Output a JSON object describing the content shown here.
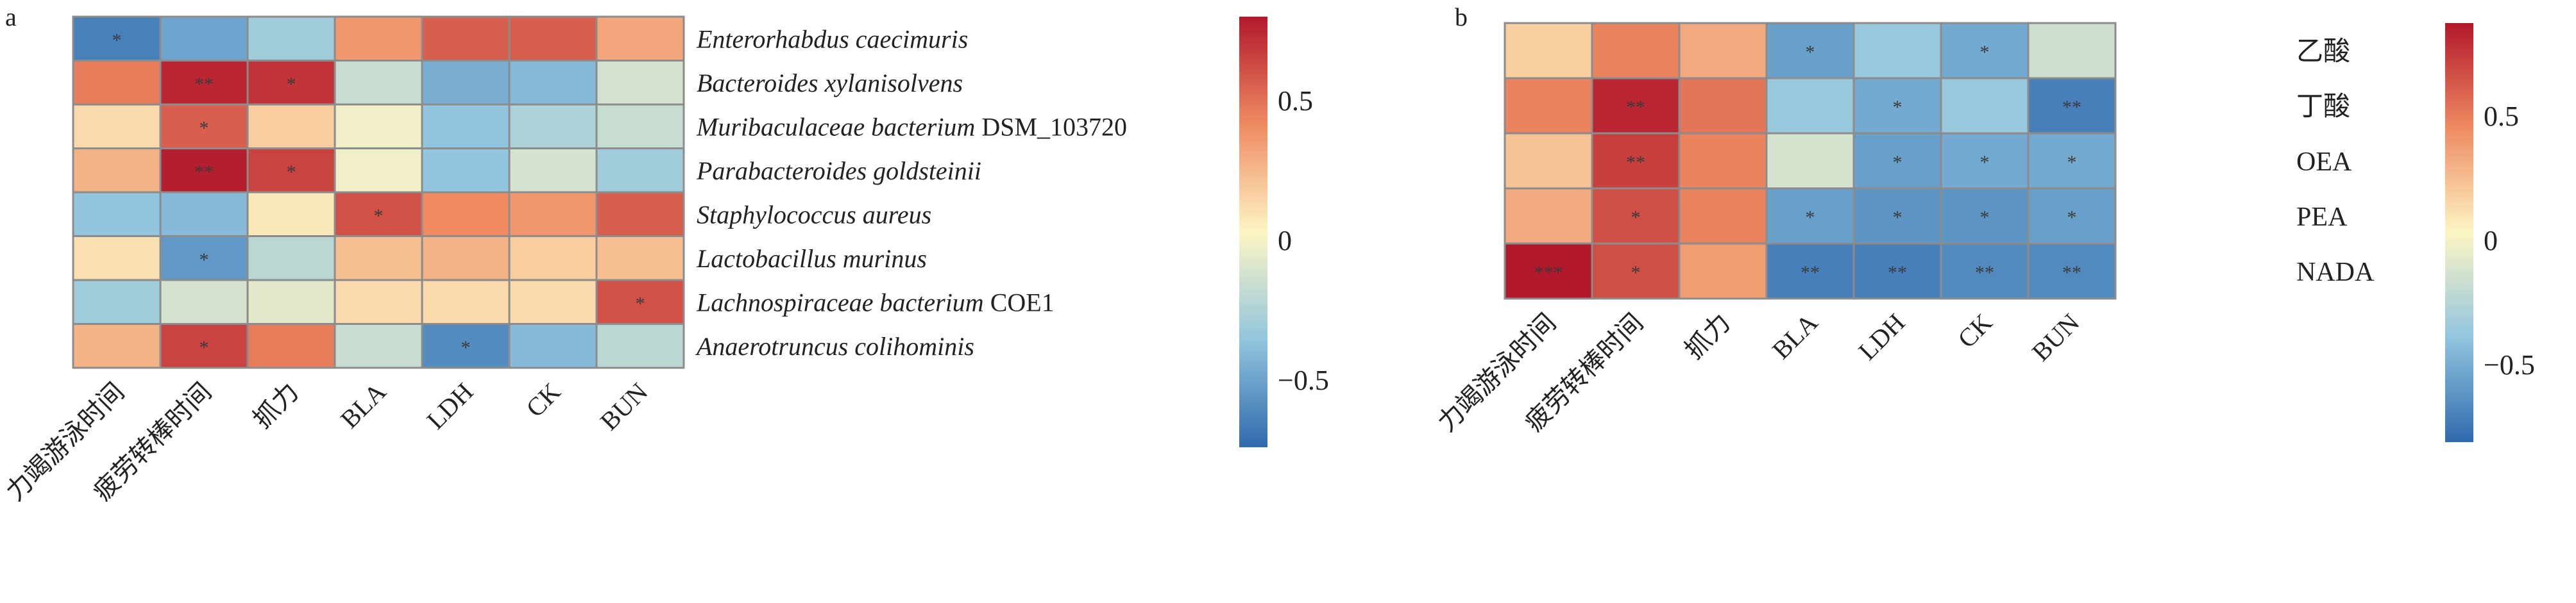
{
  "panels": [
    {
      "letter": "a",
      "columns": [
        "力竭游泳时间",
        "疲劳转棒时间",
        "抓力",
        "BLA",
        "LDH",
        "CK",
        "BUN"
      ],
      "rows": [
        {
          "italic": "Enterorhabdus caecimuris",
          "suffix": ""
        },
        {
          "italic": "Bacteroides xylanisolvens",
          "suffix": ""
        },
        {
          "italic": "Muribaculaceae bacterium",
          "suffix": " DSM_103720"
        },
        {
          "italic": "Parabacteroides goldsteinii",
          "suffix": ""
        },
        {
          "italic": "Staphylococcus aureus",
          "suffix": ""
        },
        {
          "italic": "Lactobacillus murinus",
          "suffix": ""
        },
        {
          "italic": "Lachnospiraceae bacterium",
          "suffix": " COE1"
        },
        {
          "italic": "Anaerotruncus colihominis",
          "suffix": ""
        }
      ],
      "colorbar_ticks": [
        "0.5",
        "0",
        "−0.5"
      ]
    },
    {
      "letter": "b",
      "columns": [
        "力竭游泳时间",
        "疲劳转棒时间",
        "抓力",
        "BLA",
        "LDH",
        "CK",
        "BUN"
      ],
      "rows": [
        {
          "italic": "",
          "suffix": "乙酸"
        },
        {
          "italic": "",
          "suffix": "丁酸"
        },
        {
          "italic": "",
          "suffix": "OEA"
        },
        {
          "italic": "",
          "suffix": "PEA"
        },
        {
          "italic": "",
          "suffix": "NADA"
        }
      ],
      "colorbar_ticks": [
        "0.5",
        "0",
        "−0.5"
      ]
    }
  ],
  "chart_data": [
    {
      "type": "heatmap",
      "panel": "a",
      "x": [
        "力竭游泳时间",
        "疲劳转棒时间",
        "抓力",
        "BLA",
        "LDH",
        "CK",
        "BUN"
      ],
      "y": [
        "Enterorhabdus caecimuris",
        "Bacteroides xylanisolvens",
        "Muribaculaceae bacterium DSM_103720",
        "Parabacteroides goldsteinii",
        "Staphylococcus aureus",
        "Lactobacillus murinus",
        "Lachnospiraceae bacterium COE1",
        "Anaerotruncus colihominis"
      ],
      "values": [
        [
          -0.7,
          -0.55,
          -0.35,
          0.35,
          0.55,
          0.55,
          0.3
        ],
        [
          0.45,
          0.75,
          0.7,
          -0.2,
          -0.5,
          -0.45,
          -0.15
        ],
        [
          0.1,
          0.55,
          0.15,
          -0.05,
          -0.4,
          -0.3,
          -0.2
        ],
        [
          0.25,
          0.78,
          0.65,
          -0.05,
          -0.4,
          -0.15,
          -0.35
        ],
        [
          -0.4,
          -0.45,
          0.05,
          0.6,
          0.4,
          0.35,
          0.55
        ],
        [
          0.08,
          -0.6,
          -0.25,
          0.2,
          0.25,
          0.15,
          0.2
        ],
        [
          -0.35,
          -0.15,
          -0.1,
          0.1,
          0.1,
          0.1,
          0.6
        ],
        [
          0.25,
          0.65,
          0.45,
          -0.2,
          -0.65,
          -0.45,
          -0.25
        ]
      ],
      "significance": [
        [
          "*",
          "",
          "",
          "",
          "",
          "",
          ""
        ],
        [
          "",
          "**",
          "*",
          "",
          "",
          "",
          ""
        ],
        [
          "",
          "*",
          "",
          "",
          "",
          "",
          ""
        ],
        [
          "",
          "**",
          "*",
          "",
          "",
          "",
          ""
        ],
        [
          "",
          "",
          "",
          "*",
          "",
          "",
          ""
        ],
        [
          "",
          "*",
          "",
          "",
          "",
          "",
          ""
        ],
        [
          "",
          "",
          "",
          "",
          "",
          "",
          "*"
        ],
        [
          "",
          "*",
          "",
          "",
          "*",
          "",
          ""
        ]
      ],
      "color_range": [
        -0.8,
        0.8
      ],
      "colorbar_ticks": [
        0.5,
        0,
        -0.5
      ]
    },
    {
      "type": "heatmap",
      "panel": "b",
      "x": [
        "力竭游泳时间",
        "疲劳转棒时间",
        "抓力",
        "BLA",
        "LDH",
        "CK",
        "BUN"
      ],
      "y": [
        "乙酸",
        "丁酸",
        "OEA",
        "PEA",
        "NADA"
      ],
      "values": [
        [
          0.15,
          0.45,
          0.3,
          -0.6,
          -0.4,
          -0.55,
          -0.2
        ],
        [
          0.45,
          0.8,
          0.5,
          -0.4,
          -0.55,
          -0.4,
          -0.75
        ],
        [
          0.2,
          0.7,
          0.45,
          -0.15,
          -0.6,
          -0.55,
          -0.55
        ],
        [
          0.3,
          0.65,
          0.45,
          -0.6,
          -0.65,
          -0.65,
          -0.6
        ],
        [
          0.85,
          0.65,
          0.35,
          -0.75,
          -0.75,
          -0.7,
          -0.7
        ]
      ],
      "significance": [
        [
          "",
          "",
          "",
          "*",
          "",
          "*",
          ""
        ],
        [
          "",
          "**",
          "",
          "",
          "*",
          "",
          "**"
        ],
        [
          "",
          "**",
          "",
          "",
          "*",
          "*",
          "*"
        ],
        [
          "",
          "*",
          "",
          "*",
          "*",
          "*",
          "*"
        ],
        [
          "***",
          "*",
          "",
          "**",
          "**",
          "**",
          "**"
        ]
      ],
      "color_range": [
        -0.85,
        0.85
      ],
      "colorbar_ticks": [
        0.5,
        0,
        -0.5
      ]
    }
  ]
}
